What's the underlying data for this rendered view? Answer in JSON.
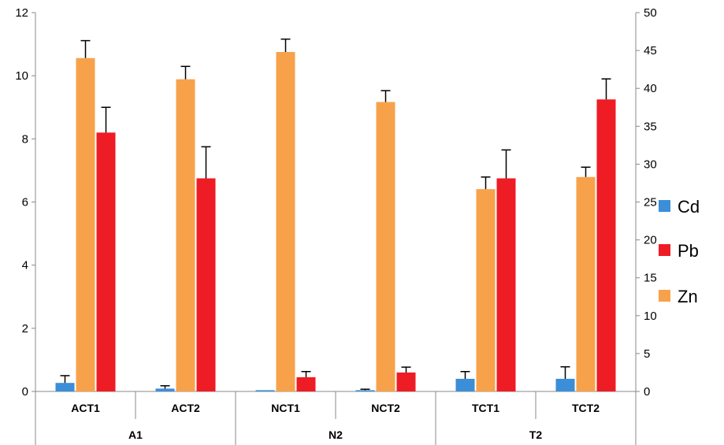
{
  "chart_data": {
    "type": "bar",
    "groups": [
      {
        "label": "A1",
        "categories": [
          "ACT1",
          "ACT2"
        ]
      },
      {
        "label": "N2",
        "categories": [
          "NCT1",
          "NCT2"
        ]
      },
      {
        "label": "T2",
        "categories": [
          "TCT1",
          "TCT2"
        ]
      }
    ],
    "categories": [
      "ACT1",
      "ACT2",
      "NCT1",
      "NCT2",
      "TCT1",
      "TCT2"
    ],
    "y_left": {
      "min": 0,
      "max": 12,
      "step": 2,
      "ticks": [
        "0",
        "2",
        "4",
        "6",
        "8",
        "10",
        "12"
      ]
    },
    "y_right": {
      "min": 0,
      "max": 50,
      "step": 5,
      "ticks": [
        "0",
        "5",
        "10",
        "15",
        "20",
        "25",
        "30",
        "35",
        "40",
        "45",
        "50"
      ]
    },
    "grid": false,
    "legend": {
      "position": "right"
    },
    "series": [
      {
        "name": "Cd",
        "color": "#3b8ed8",
        "axis": "left",
        "values": [
          0.27,
          0.09,
          0.04,
          0.04,
          0.4,
          0.4
        ],
        "errors": [
          0.23,
          0.09,
          0.0,
          0.03,
          0.23,
          0.38
        ]
      },
      {
        "name": "Pb",
        "color": "#ee1c25",
        "axis": "left",
        "values": [
          8.2,
          6.75,
          0.45,
          0.6,
          6.75,
          9.25
        ],
        "errors": [
          0.8,
          1.0,
          0.18,
          0.17,
          0.9,
          0.65
        ]
      },
      {
        "name": "Zn",
        "color": "#f7a24a",
        "axis": "right",
        "values": [
          44.0,
          41.2,
          44.8,
          38.2,
          26.7,
          28.3
        ],
        "errors": [
          2.3,
          1.7,
          1.7,
          1.5,
          1.6,
          1.3
        ]
      }
    ]
  }
}
